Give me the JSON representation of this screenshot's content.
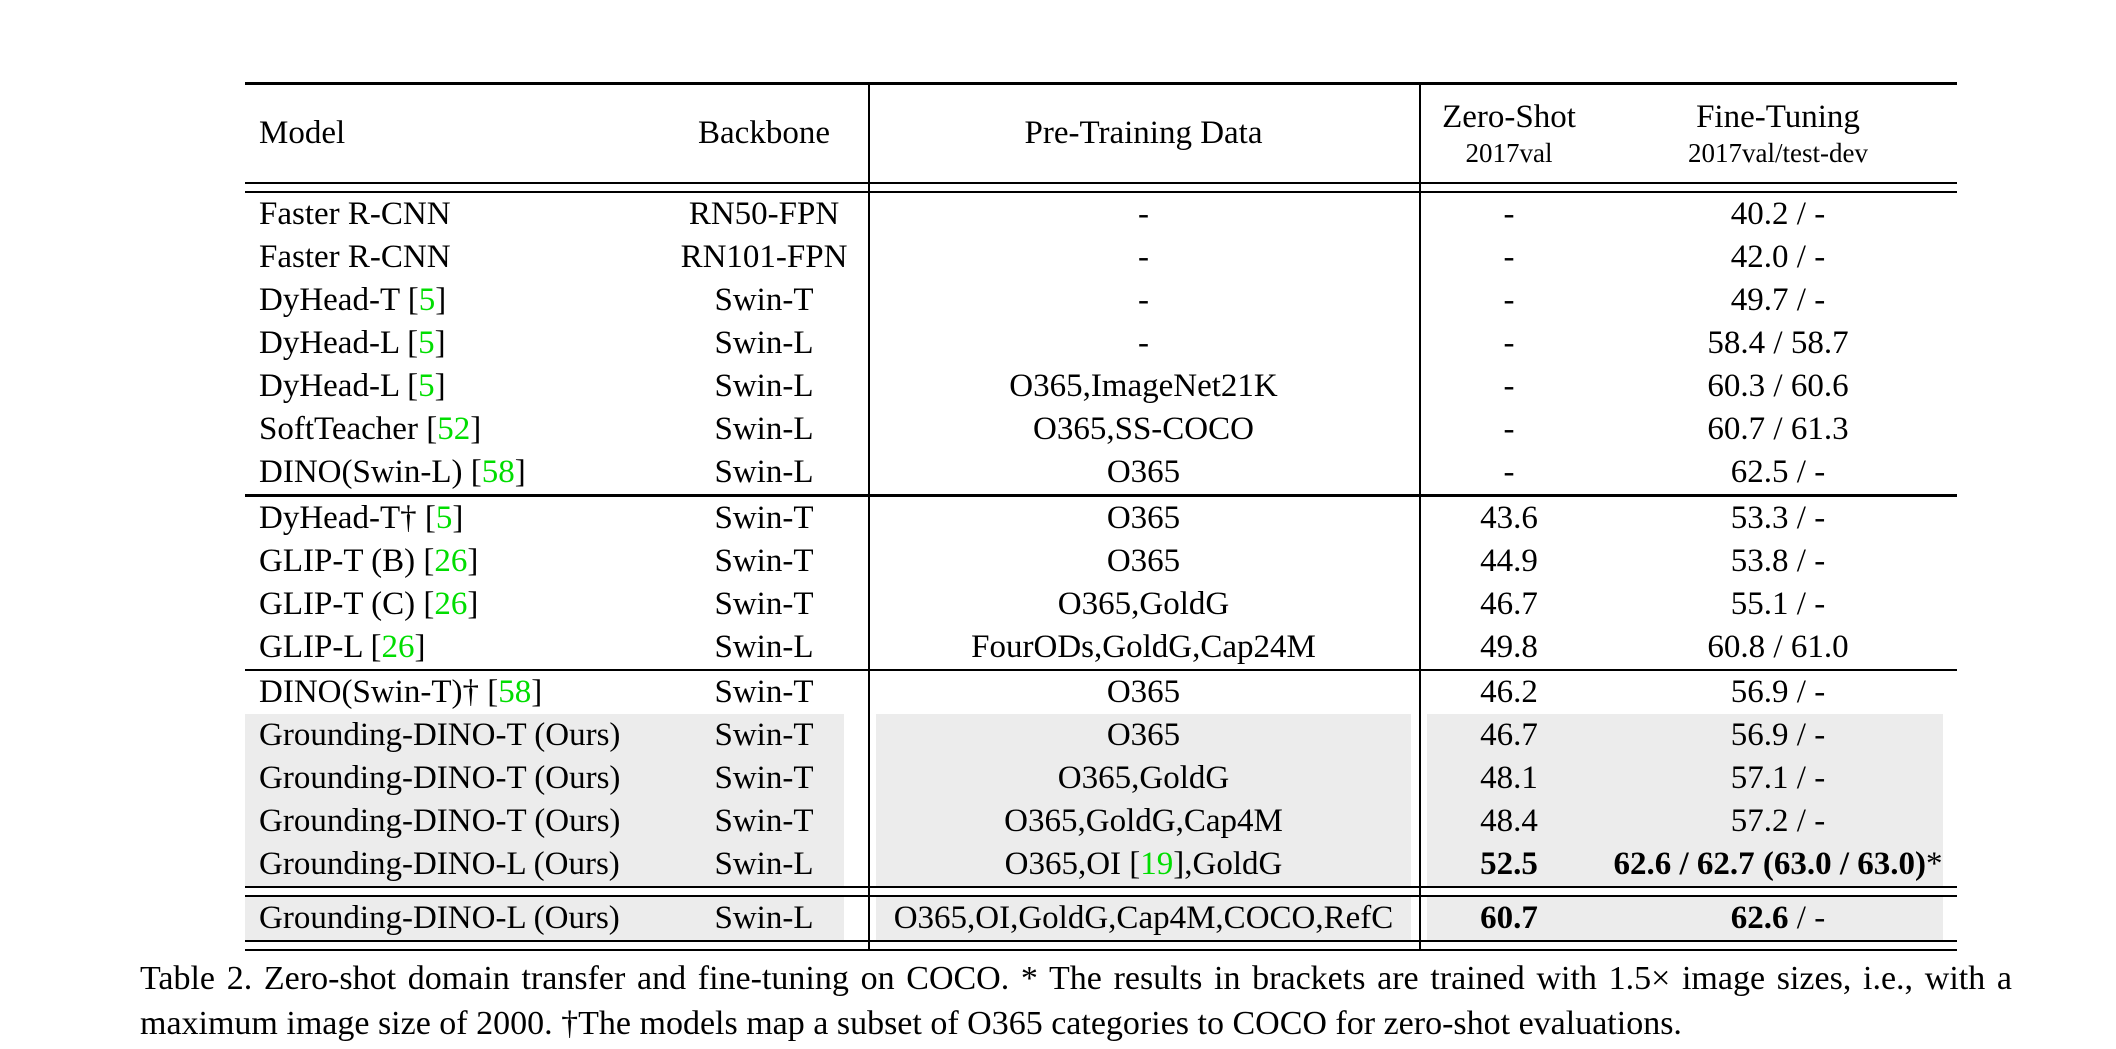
{
  "colors": {
    "citation_green": "#00dd00",
    "highlight_gray": "#ececec",
    "rule_black": "#000000"
  },
  "table": {
    "header": {
      "model": "Model",
      "backbone": "Backbone",
      "pretrain": "Pre-Training Data",
      "zeroshot_title": "Zero-Shot",
      "zeroshot_sub": "2017val",
      "finetune_title": "Fine-Tuning",
      "finetune_sub": "2017val/test-dev"
    },
    "sections": [
      {
        "rows": [
          {
            "model": "Faster R-CNN",
            "ref": null,
            "backbone": "RN50-FPN",
            "pretrain": [
              {
                "t": "-"
              }
            ],
            "zeroshot": [
              {
                "t": "-"
              }
            ],
            "finetune": [
              {
                "t": "40.2 / -"
              }
            ],
            "highlight": false
          },
          {
            "model": "Faster R-CNN",
            "ref": null,
            "backbone": "RN101-FPN",
            "pretrain": [
              {
                "t": "-"
              }
            ],
            "zeroshot": [
              {
                "t": "-"
              }
            ],
            "finetune": [
              {
                "t": "42.0 / -"
              }
            ],
            "highlight": false
          },
          {
            "model": "DyHead-T",
            "ref": "5",
            "backbone": "Swin-T",
            "pretrain": [
              {
                "t": "-"
              }
            ],
            "zeroshot": [
              {
                "t": "-"
              }
            ],
            "finetune": [
              {
                "t": "49.7 / -"
              }
            ],
            "highlight": false
          },
          {
            "model": "DyHead-L",
            "ref": "5",
            "backbone": "Swin-L",
            "pretrain": [
              {
                "t": "-"
              }
            ],
            "zeroshot": [
              {
                "t": "-"
              }
            ],
            "finetune": [
              {
                "t": "58.4 / 58.7"
              }
            ],
            "highlight": false
          },
          {
            "model": "DyHead-L",
            "ref": "5",
            "backbone": "Swin-L",
            "pretrain": [
              {
                "t": "O365,ImageNet21K"
              }
            ],
            "zeroshot": [
              {
                "t": "-"
              }
            ],
            "finetune": [
              {
                "t": "60.3 / 60.6"
              }
            ],
            "highlight": false
          },
          {
            "model": "SoftTeacher",
            "ref": "52",
            "backbone": "Swin-L",
            "pretrain": [
              {
                "t": "O365,SS-COCO"
              }
            ],
            "zeroshot": [
              {
                "t": "-"
              }
            ],
            "finetune": [
              {
                "t": "60.7 / 61.3"
              }
            ],
            "highlight": false
          },
          {
            "model": "DINO(Swin-L)",
            "ref": "58",
            "backbone": "Swin-L",
            "pretrain": [
              {
                "t": "O365"
              }
            ],
            "zeroshot": [
              {
                "t": "-"
              }
            ],
            "finetune": [
              {
                "t": "62.5 / -"
              }
            ],
            "highlight": false
          }
        ]
      },
      {
        "rows": [
          {
            "model": "DyHead-T†",
            "ref": "5",
            "backbone": "Swin-T",
            "pretrain": [
              {
                "t": "O365"
              }
            ],
            "zeroshot": [
              {
                "t": "43.6"
              }
            ],
            "finetune": [
              {
                "t": "53.3 / -"
              }
            ],
            "highlight": false
          },
          {
            "model": "GLIP-T (B)",
            "ref": "26",
            "backbone": "Swin-T",
            "pretrain": [
              {
                "t": "O365"
              }
            ],
            "zeroshot": [
              {
                "t": "44.9"
              }
            ],
            "finetune": [
              {
                "t": "53.8 / -"
              }
            ],
            "highlight": false
          },
          {
            "model": "GLIP-T (C)",
            "ref": "26",
            "backbone": "Swin-T",
            "pretrain": [
              {
                "t": "O365,GoldG"
              }
            ],
            "zeroshot": [
              {
                "t": "46.7"
              }
            ],
            "finetune": [
              {
                "t": "55.1 / -"
              }
            ],
            "highlight": false
          },
          {
            "model": "GLIP-L",
            "ref": "26",
            "backbone": "Swin-L",
            "pretrain": [
              {
                "t": "FourODs,GoldG,Cap24M"
              }
            ],
            "zeroshot": [
              {
                "t": "49.8"
              }
            ],
            "finetune": [
              {
                "t": "60.8 / 61.0"
              }
            ],
            "highlight": false
          }
        ]
      },
      {
        "rows": [
          {
            "model": "DINO(Swin-T)†",
            "ref": "58",
            "backbone": "Swin-T",
            "pretrain": [
              {
                "t": "O365"
              }
            ],
            "zeroshot": [
              {
                "t": "46.2"
              }
            ],
            "finetune": [
              {
                "t": "56.9 / -"
              }
            ],
            "highlight": false
          },
          {
            "model": "Grounding-DINO-T (Ours)",
            "ref": null,
            "backbone": "Swin-T",
            "pretrain": [
              {
                "t": "O365"
              }
            ],
            "zeroshot": [
              {
                "t": "46.7"
              }
            ],
            "finetune": [
              {
                "t": "56.9 / -"
              }
            ],
            "highlight": true
          },
          {
            "model": "Grounding-DINO-T (Ours)",
            "ref": null,
            "backbone": "Swin-T",
            "pretrain": [
              {
                "t": "O365,GoldG"
              }
            ],
            "zeroshot": [
              {
                "t": "48.1"
              }
            ],
            "finetune": [
              {
                "t": "57.1 / -"
              }
            ],
            "highlight": true
          },
          {
            "model": "Grounding-DINO-T (Ours)",
            "ref": null,
            "backbone": "Swin-T",
            "pretrain": [
              {
                "t": "O365,GoldG,Cap4M"
              }
            ],
            "zeroshot": [
              {
                "t": "48.4"
              }
            ],
            "finetune": [
              {
                "t": "57.2 / -"
              }
            ],
            "highlight": true
          },
          {
            "model": "Grounding-DINO-L (Ours)",
            "ref": null,
            "backbone": "Swin-L",
            "pretrain": [
              {
                "t": "O365,OI ["
              },
              {
                "t": "19",
                "g": true
              },
              {
                "t": "],GoldG"
              }
            ],
            "zeroshot": [
              {
                "t": "52.5",
                "b": true
              }
            ],
            "finetune": [
              {
                "t": "62.6 / 62.7 (63.0 / 63.0)",
                "b": true
              },
              {
                "t": "*"
              }
            ],
            "highlight": true
          }
        ]
      },
      {
        "rows": [
          {
            "model": "Grounding-DINO-L (Ours)",
            "ref": null,
            "backbone": "Swin-L",
            "pretrain": [
              {
                "t": "O365,OI,GoldG,Cap4M,COCO,RefC"
              }
            ],
            "zeroshot": [
              {
                "t": "60.7",
                "b": true
              }
            ],
            "finetune": [
              {
                "t": "62.6",
                "b": true
              },
              {
                "t": " / -"
              }
            ],
            "highlight": true
          }
        ]
      }
    ]
  },
  "caption": {
    "text": "Table 2.  Zero-shot domain transfer and fine-tuning on COCO. * The results in brackets are trained with 1.5× image sizes, i.e., with a maximum image size of 2000. †The models map a subset of O365 categories to COCO for zero-shot evaluations."
  }
}
